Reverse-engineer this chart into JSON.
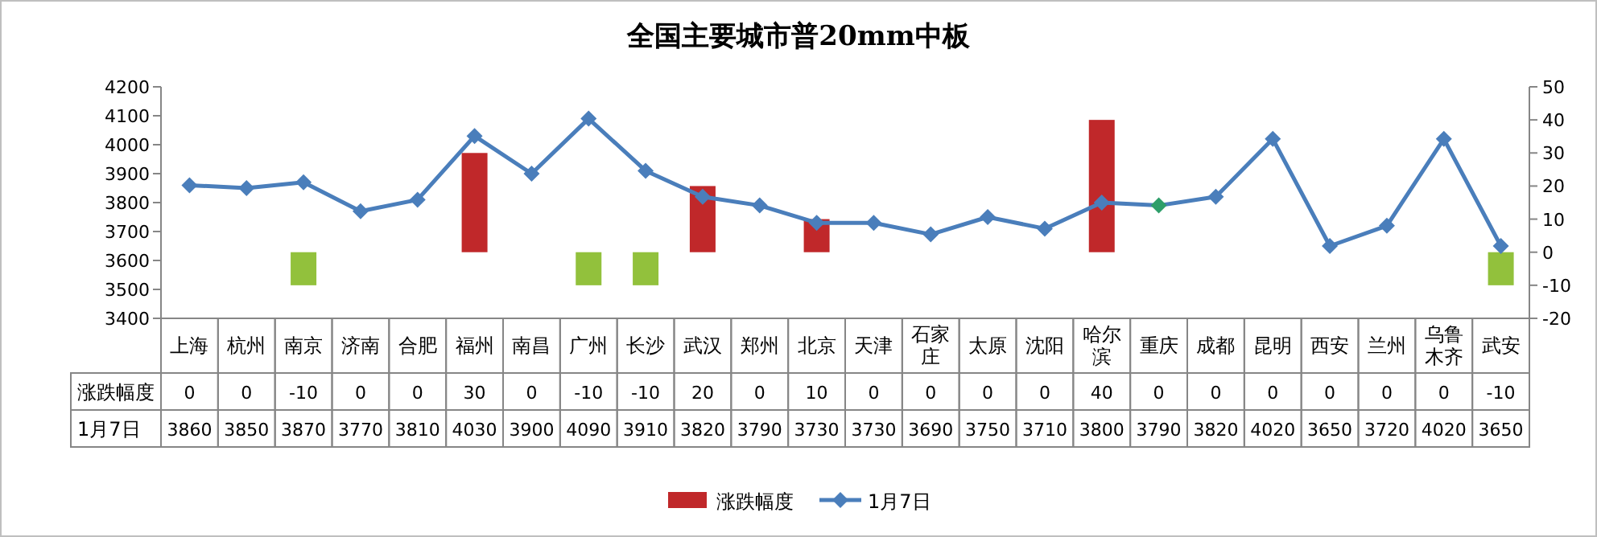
{
  "chart_data": {
    "type": "bar",
    "title": "全国主要城市普20mm中板",
    "categories": [
      "上海",
      "杭州",
      "南京",
      "济南",
      "合肥",
      "福州",
      "南昌",
      "广州",
      "长沙",
      "武汉",
      "郑州",
      "北京",
      "天津",
      "石家庄",
      "太原",
      "沈阳",
      "哈尔滨",
      "重庆",
      "成都",
      "昆明",
      "西安",
      "兰州",
      "乌鲁木齐",
      "武安"
    ],
    "series": [
      {
        "name": "涨跌幅度",
        "axis": "y2",
        "color": "#c0282a",
        "colors": [
          "#c0282a",
          "#c0282a",
          "#92c13c",
          "#c0282a",
          "#c0282a",
          "#c0282a",
          "#c0282a",
          "#92c13c",
          "#92c13c",
          "#c0282a",
          "#c0282a",
          "#c0282a",
          "#c0282a",
          "#c0282a",
          "#c0282a",
          "#c0282a",
          "#c0282a",
          "#c0282a",
          "#c0282a",
          "#c0282a",
          "#c0282a",
          "#c0282a",
          "#c0282a",
          "#92c13c"
        ],
        "values": [
          0,
          0,
          -10,
          0,
          0,
          30,
          0,
          -10,
          -10,
          20,
          0,
          10,
          0,
          0,
          0,
          0,
          40,
          0,
          0,
          0,
          0,
          0,
          0,
          -10
        ]
      },
      {
        "name": "1月7日",
        "type": "line",
        "color": "#4a7ebb",
        "colors": [
          "#4a7ebb",
          "#4a7ebb",
          "#4a7ebb",
          "#4a7ebb",
          "#4a7ebb",
          "#4a7ebb",
          "#4a7ebb",
          "#4a7ebb",
          "#4a7ebb",
          "#4a7ebb",
          "#4a7ebb",
          "#4a7ebb",
          "#4a7ebb",
          "#4a7ebb",
          "#4a7ebb",
          "#4a7ebb",
          "#4a7ebb",
          "#2e9e6a",
          "#4a7ebb",
          "#4a7ebb",
          "#4a7ebb",
          "#4a7ebb",
          "#4a7ebb",
          "#4a7ebb"
        ],
        "values": [
          3860,
          3850,
          3870,
          3770,
          3810,
          4030,
          3900,
          4090,
          3910,
          3820,
          3790,
          3730,
          3730,
          3690,
          3750,
          3710,
          3800,
          3790,
          3820,
          4020,
          3650,
          3720,
          4020,
          3650
        ]
      }
    ],
    "ylim": [
      3400,
      4200
    ],
    "yticks": [
      3400,
      3500,
      3600,
      3700,
      3800,
      3900,
      4000,
      4100,
      4200
    ],
    "y2lim": [
      -20,
      50
    ],
    "y2ticks": [
      -20,
      -10,
      0,
      10,
      20,
      30,
      40,
      50
    ],
    "marker": "diamond",
    "legend": "bottom",
    "data_labels": true
  }
}
